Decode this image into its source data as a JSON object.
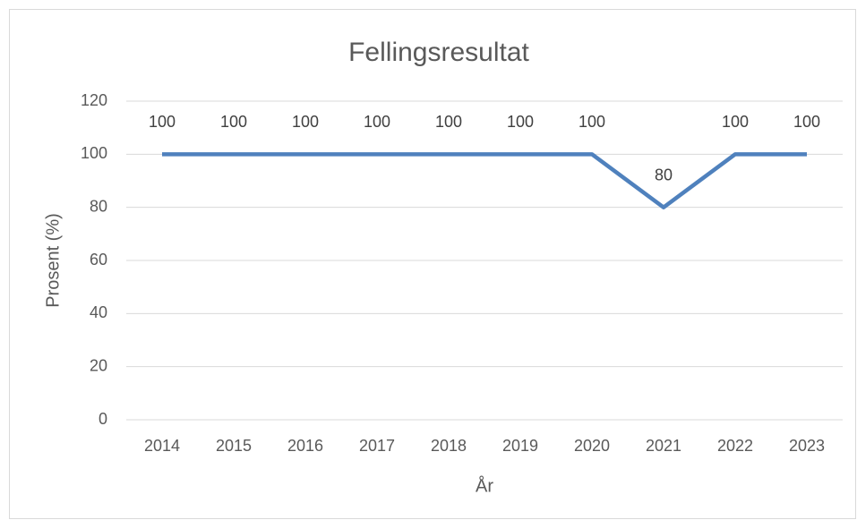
{
  "chart_data": {
    "type": "line",
    "title": "Fellingsresultat",
    "x_label": "År",
    "y_label": "Prosent (%)",
    "categories": [
      "2014",
      "2015",
      "2016",
      "2017",
      "2018",
      "2019",
      "2020",
      "2021",
      "2022",
      "2023"
    ],
    "series": [
      {
        "name": "Fellingsresultat",
        "color": "#4f81bd",
        "values": [
          100,
          100,
          100,
          100,
          100,
          100,
          100,
          80,
          100,
          100
        ]
      }
    ],
    "ylim": [
      0,
      120
    ],
    "yticks": [
      0,
      20,
      40,
      60,
      80,
      100,
      120
    ],
    "grid": true,
    "data_labels": true
  }
}
